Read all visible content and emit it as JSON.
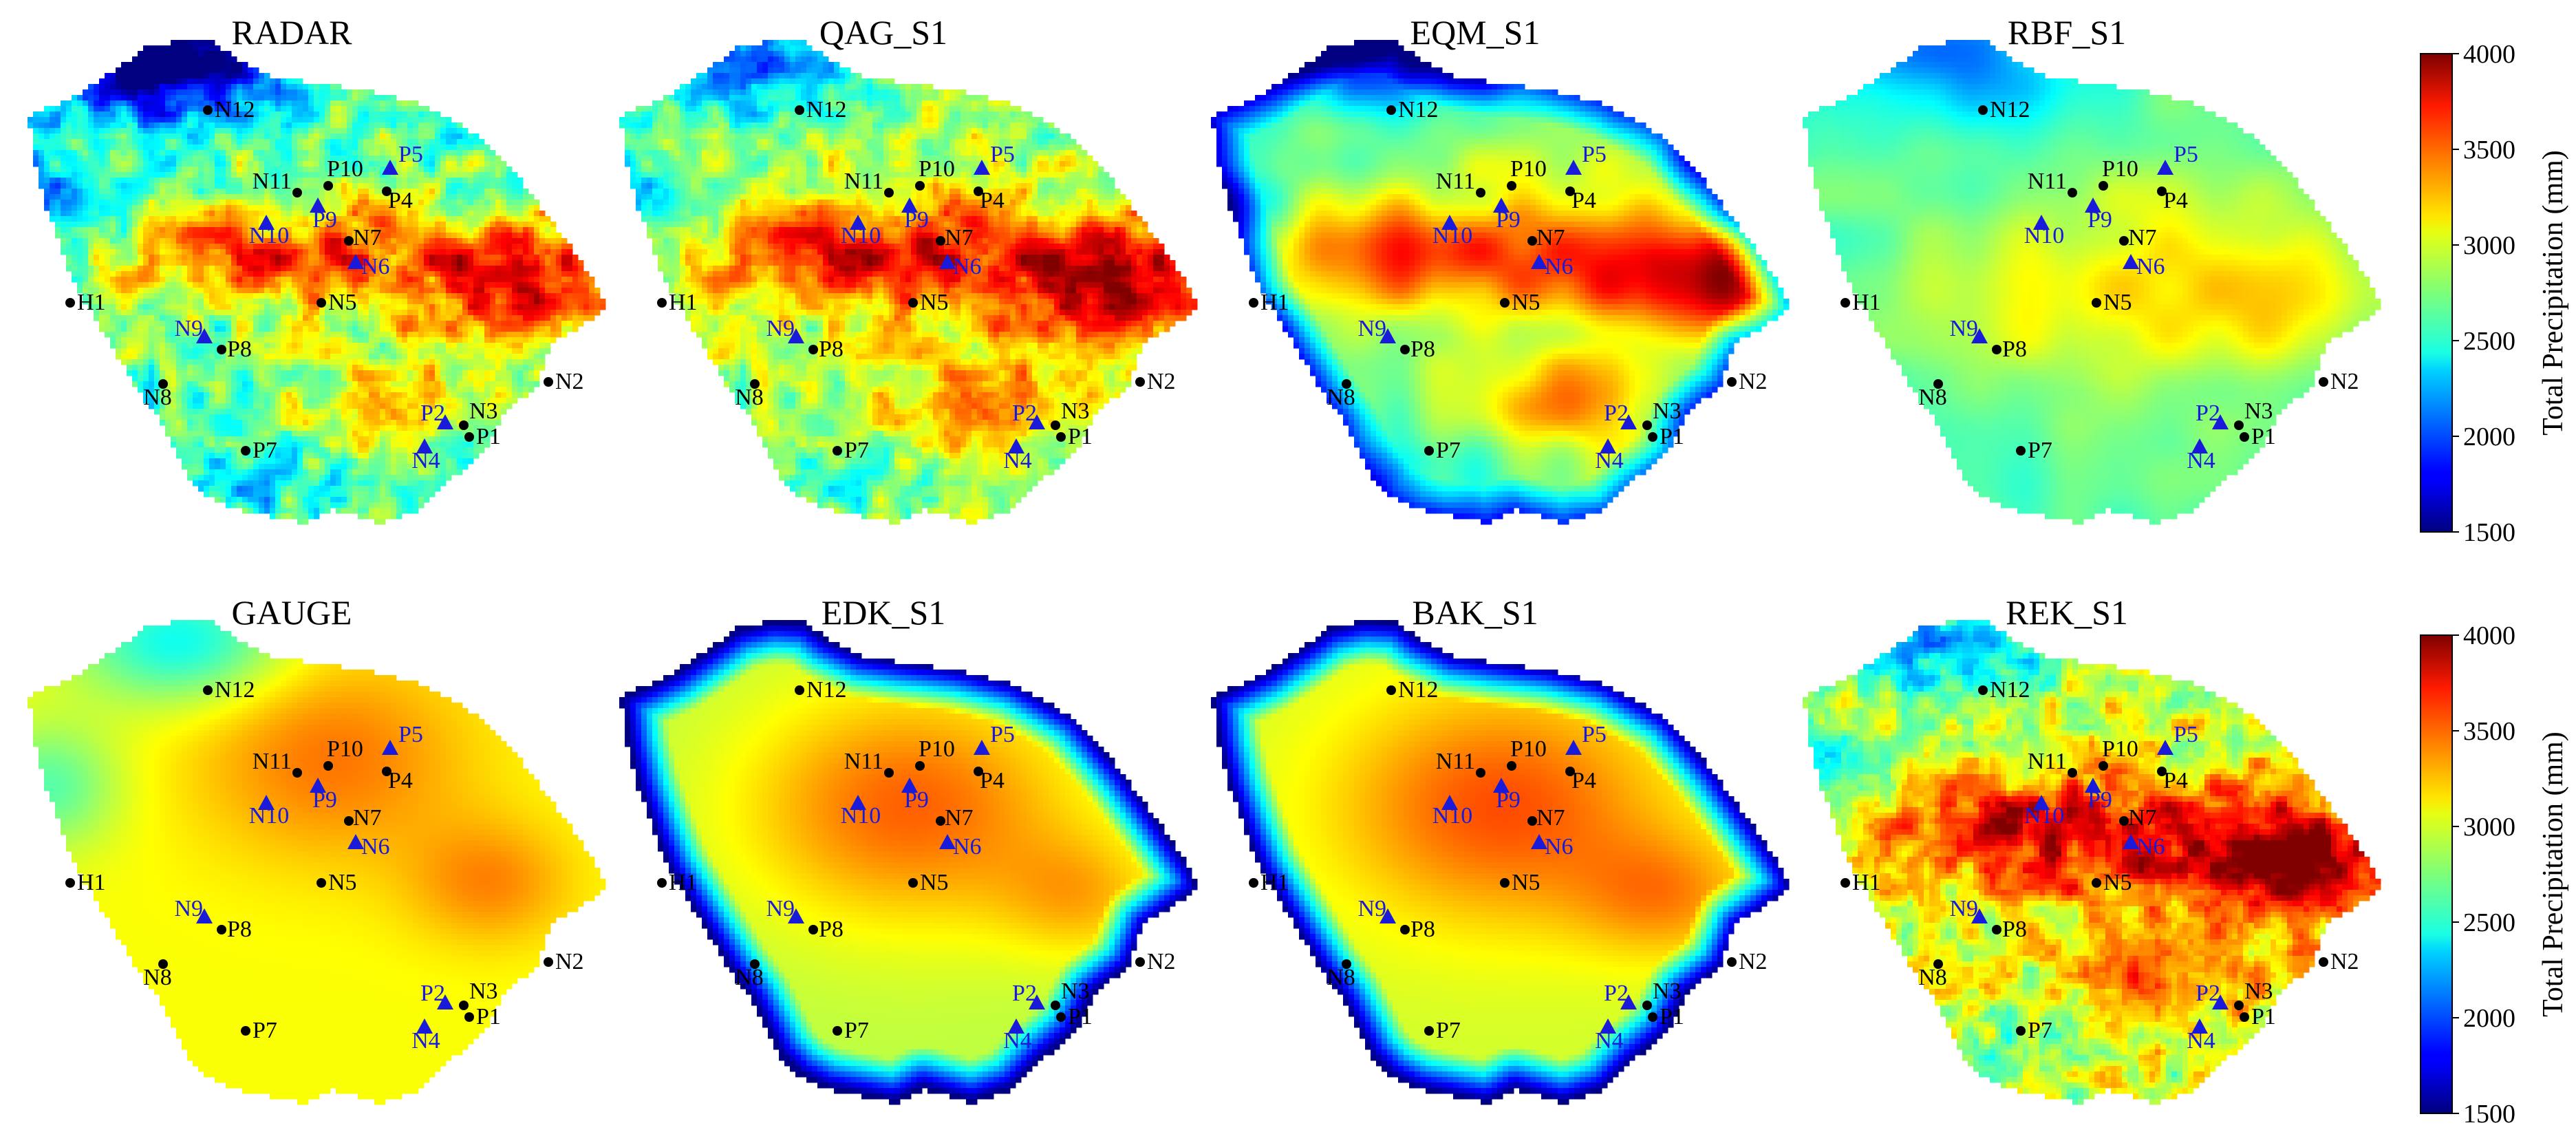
{
  "chart_data": {
    "type": "heatmap",
    "colormap": "jet",
    "panels": [
      {
        "title": "RADAR",
        "field": "radar"
      },
      {
        "title": "QAG_S1",
        "field": "qag"
      },
      {
        "title": "EQM_S1",
        "field": "eqm"
      },
      {
        "title": "RBF_S1",
        "field": "rbf"
      },
      {
        "title": "GAUGE",
        "field": "gauge"
      },
      {
        "title": "EDK_S1",
        "field": "edk"
      },
      {
        "title": "BAK_S1",
        "field": "bak"
      },
      {
        "title": "REK_S1",
        "field": "rek"
      }
    ],
    "colorbars": [
      {
        "label": "Total Precipitation (mm)",
        "range": [
          1500,
          4000
        ],
        "ticks": [
          "1500",
          "2000",
          "2500",
          "3000",
          "3500",
          "4000"
        ]
      },
      {
        "label": "Total Precipitation (mm)",
        "range": [
          1500,
          4000
        ],
        "ticks": [
          "1500",
          "2000",
          "2500",
          "3000",
          "3500",
          "4000"
        ]
      }
    ],
    "stations": [
      {
        "name": "N12",
        "type": "gauge",
        "color": "#000000"
      },
      {
        "name": "N11",
        "type": "gauge",
        "color": "#000000"
      },
      {
        "name": "P10",
        "type": "gauge",
        "color": "#000000"
      },
      {
        "name": "P5",
        "type": "radar-site",
        "color": "#1a1adb"
      },
      {
        "name": "P4",
        "type": "gauge",
        "color": "#000000"
      },
      {
        "name": "N10",
        "type": "radar-site",
        "color": "#1a1adb"
      },
      {
        "name": "P9",
        "type": "radar-site",
        "color": "#1a1adb"
      },
      {
        "name": "N7",
        "type": "gauge",
        "color": "#000000"
      },
      {
        "name": "N6",
        "type": "radar-site",
        "color": "#1a1adb"
      },
      {
        "name": "H1",
        "type": "gauge",
        "color": "#000000"
      },
      {
        "name": "N5",
        "type": "gauge",
        "color": "#000000"
      },
      {
        "name": "N9",
        "type": "radar-site",
        "color": "#1a1adb"
      },
      {
        "name": "P8",
        "type": "gauge",
        "color": "#000000"
      },
      {
        "name": "N8",
        "type": "gauge",
        "color": "#000000"
      },
      {
        "name": "N2",
        "type": "gauge",
        "color": "#000000"
      },
      {
        "name": "P2",
        "type": "radar-site",
        "color": "#1a1adb"
      },
      {
        "name": "N3",
        "type": "gauge",
        "color": "#000000"
      },
      {
        "name": "P1",
        "type": "gauge",
        "color": "#000000"
      },
      {
        "name": "N4",
        "type": "radar-site",
        "color": "#1a1adb"
      },
      {
        "name": "P7",
        "type": "gauge",
        "color": "#000000"
      }
    ]
  }
}
